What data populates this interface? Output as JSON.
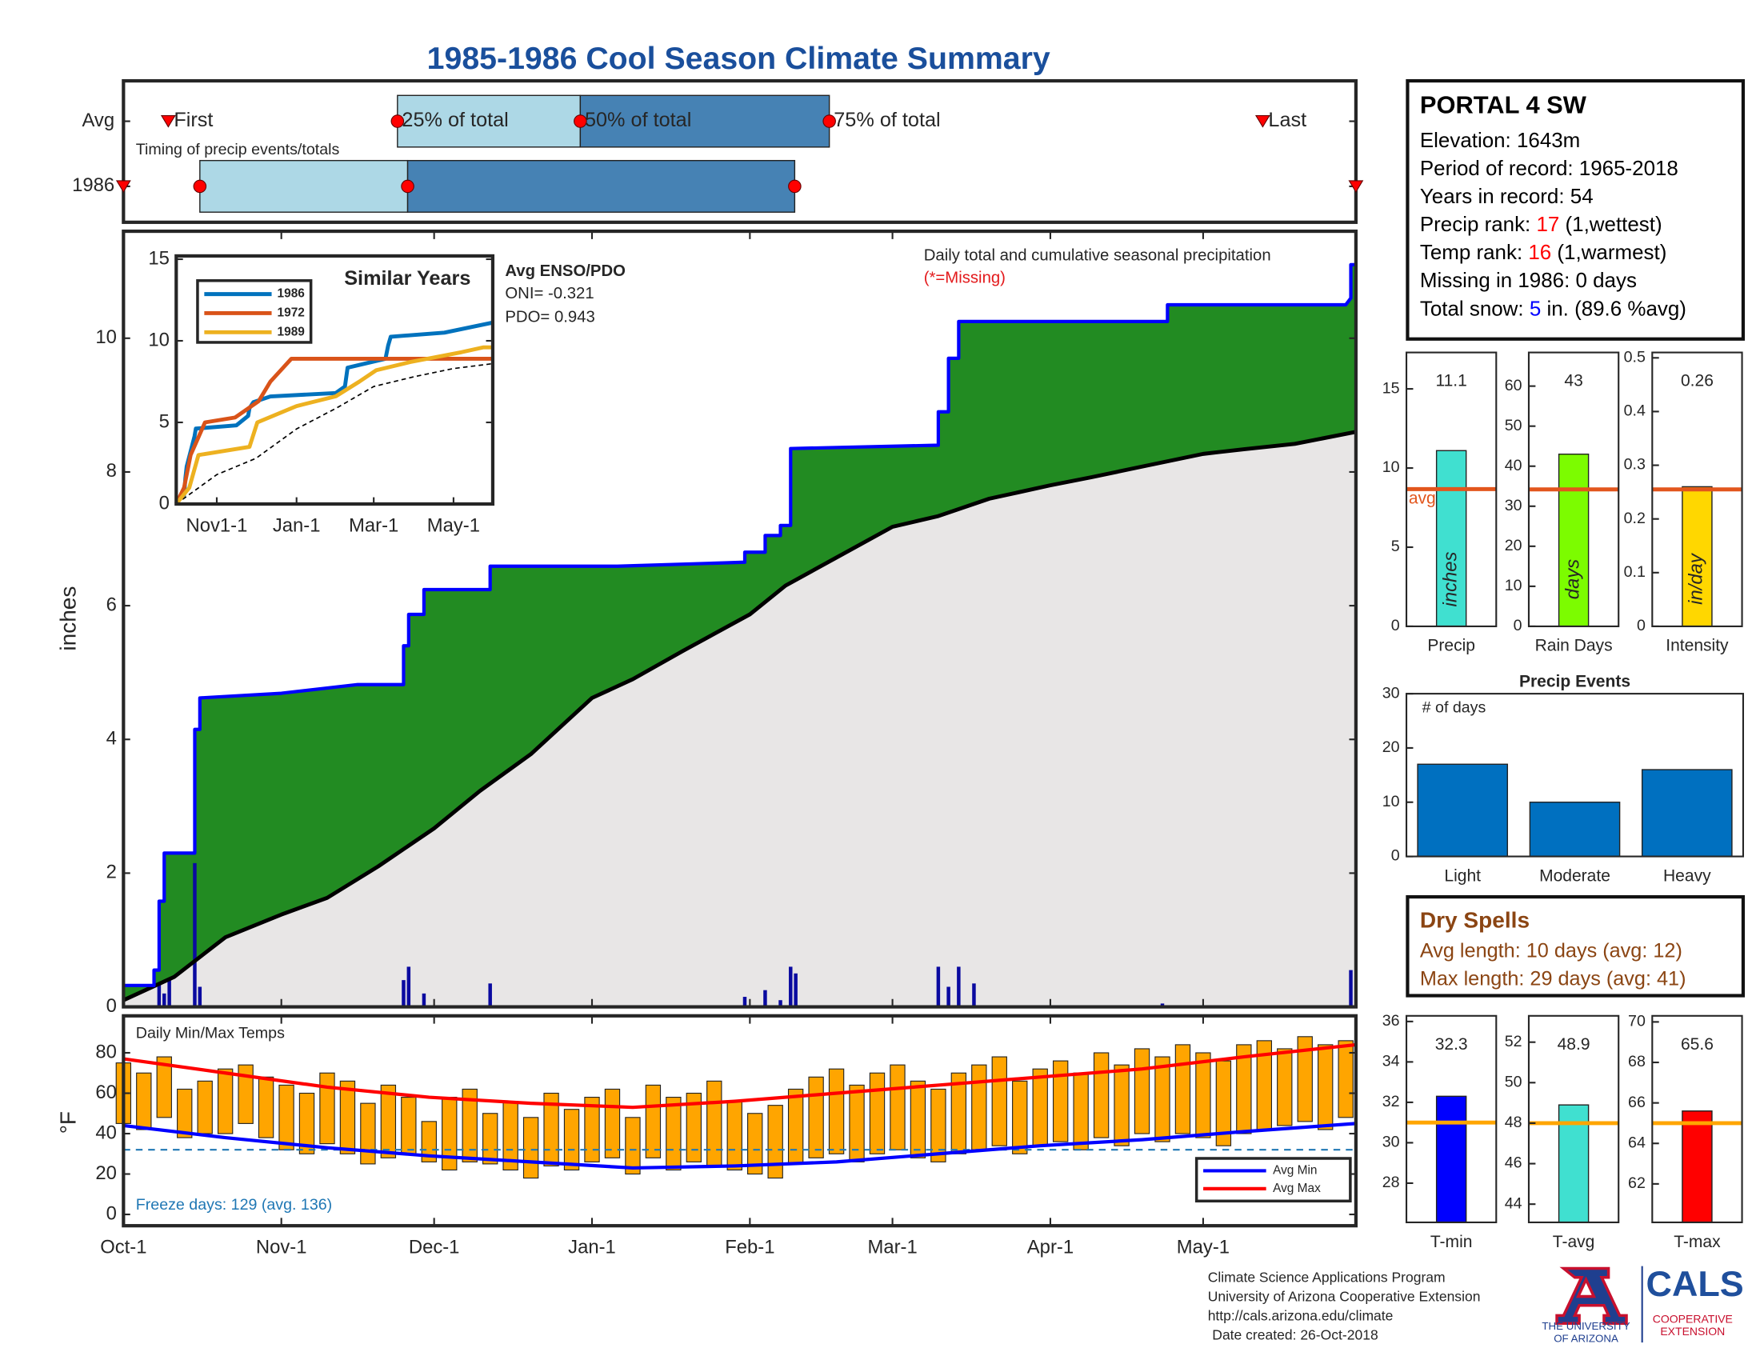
{
  "title": "1985-1986 Cool Season Climate Summary",
  "station": {
    "name": "PORTAL 4 SW",
    "lines": [
      [
        {
          "text": "Elevation: 1643m"
        }
      ],
      [
        {
          "text": "Period of record: 1965-2018"
        }
      ],
      [
        {
          "text": "Years in record: 54"
        }
      ],
      [
        {
          "text": "Precip rank: "
        },
        {
          "text": "17",
          "color": "#ff0000"
        },
        {
          "text": " (1,wettest)"
        }
      ],
      [
        {
          "text": "Temp rank: "
        },
        {
          "text": "16",
          "color": "#ff0000"
        },
        {
          "text": " (1,warmest)"
        }
      ],
      [
        {
          "text": "Missing in 1986: 0 days"
        }
      ],
      [
        {
          "text": "Total snow: "
        },
        {
          "text": "5",
          "color": "#0000ff"
        },
        {
          "text": " in. (89.6 %avg)"
        }
      ]
    ]
  },
  "dry_spells": {
    "title": "Dry Spells",
    "lines": [
      "Avg length: 10 days (avg: 12)",
      "Max length: 29 days (avg: 41)"
    ],
    "color": "#8b4513"
  },
  "footer": {
    "lines": [
      "Climate Science Applications Program",
      "University of Arizona Cooperative Extension",
      "http://cals.arizona.edu/climate",
      "Date created: 26-Oct-2018"
    ]
  },
  "logos": {
    "ua": [
      "THE UNIVERSITY",
      "OF ARIZONA"
    ],
    "cals": "CALS",
    "cals_sub": [
      "COOPERATIVE",
      "EXTENSION"
    ]
  },
  "chart_data": [
    {
      "type": "timeline",
      "title": "Timing of precip events/totals",
      "xlim": [
        0,
        242
      ],
      "labels": {
        "first": "First",
        "q25": "25% of total",
        "q50": "50% of total",
        "q75": "75% of total",
        "last": "Last"
      },
      "rows": [
        {
          "name": "Avg",
          "first": 8.8,
          "q25": 53.8,
          "q50": 89.7,
          "q75": 138.6,
          "last": 223.7
        },
        {
          "name": "1986",
          "first": 0,
          "q25": 15,
          "q50": 55.8,
          "q75": 131.8,
          "last": 242
        }
      ],
      "colors": {
        "light": "#add8e6",
        "dark": "#4682b4",
        "marker": "#ff0000"
      }
    },
    {
      "type": "area",
      "ylabel": "inches",
      "xlim": [
        0,
        242
      ],
      "ylim": [
        0,
        11.6
      ],
      "yticks": [
        0,
        2,
        4,
        6,
        8,
        10
      ],
      "note": "Daily total and cumulative seasonal precipitation",
      "missing_note": "(*=Missing)",
      "enso": {
        "title": "Avg ENSO/PDO",
        "oni": "ONI= -0.321",
        "pdo": "PDO= 0.943"
      },
      "cumulative": {
        "color": "#0000ff",
        "fill": "#228b22",
        "x": [
          0,
          6,
          6,
          7,
          7,
          8,
          8,
          14,
          14,
          15,
          15,
          31,
          46,
          55,
          55,
          56,
          56,
          59,
          59,
          72,
          72,
          97,
          122,
          122,
          126,
          126,
          129,
          129,
          131,
          131,
          160,
          160,
          162,
          162,
          164,
          164,
          203,
          205,
          205,
          240,
          241,
          241,
          242
        ],
        "values": [
          0.32,
          0.32,
          0.55,
          0.55,
          1.58,
          1.58,
          2.3,
          2.3,
          4.15,
          4.15,
          4.62,
          4.69,
          4.82,
          4.82,
          5.4,
          5.4,
          5.87,
          5.87,
          6.24,
          6.24,
          6.59,
          6.59,
          6.65,
          6.8,
          6.8,
          7.05,
          7.05,
          7.2,
          7.2,
          8.35,
          8.4,
          8.9,
          8.9,
          9.7,
          9.7,
          10.25,
          10.25,
          10.25,
          10.5,
          10.5,
          10.6,
          11.1,
          11.1
        ]
      },
      "average": {
        "color": "#000000",
        "fill": "#e8e6e6",
        "x": [
          0,
          10,
          20,
          31,
          40,
          50,
          61,
          70,
          80,
          92,
          100,
          110,
          123,
          130,
          140,
          151,
          160,
          170,
          182,
          190,
          200,
          212,
          220,
          230,
          242
        ],
        "values": [
          0.1,
          0.45,
          1.04,
          1.38,
          1.63,
          2.1,
          2.67,
          3.23,
          3.78,
          4.62,
          4.9,
          5.33,
          5.87,
          6.3,
          6.72,
          7.18,
          7.34,
          7.6,
          7.8,
          7.92,
          8.08,
          8.27,
          8.34,
          8.42,
          8.6
        ]
      },
      "daily": {
        "color": "#0a0aa0",
        "x": [
          7,
          8,
          9,
          14,
          15,
          55,
          56,
          59,
          72,
          122,
          126,
          129,
          131,
          132,
          160,
          162,
          164,
          167,
          204,
          241
        ],
        "values": [
          0.35,
          0.2,
          0.4,
          2.15,
          0.3,
          0.4,
          0.6,
          0.2,
          0.35,
          0.15,
          0.25,
          0.1,
          0.6,
          0.5,
          0.6,
          0.3,
          0.6,
          0.35,
          0.05,
          0.55
        ]
      }
    },
    {
      "type": "line",
      "title": "Similar Years",
      "xlim": [
        0,
        242
      ],
      "ylim": [
        0,
        15.2
      ],
      "yticks": [
        0,
        5,
        10,
        15
      ],
      "xticks": [
        {
          "value": 31,
          "label": "Nov1-1"
        },
        {
          "value": 92,
          "label": "Jan-1"
        },
        {
          "value": 151,
          "label": "Mar-1"
        },
        {
          "value": 212,
          "label": "May-1"
        }
      ],
      "series": [
        {
          "name": "1986",
          "color": "#0072bd",
          "x": [
            0,
            6,
            7,
            8,
            14,
            15,
            46,
            55,
            56,
            59,
            72,
            122,
            129,
            131,
            160,
            162,
            164,
            205,
            241,
            242
          ],
          "values": [
            0.32,
            0.55,
            1.58,
            2.3,
            4.15,
            4.62,
            4.82,
            5.4,
            5.87,
            6.24,
            6.59,
            6.8,
            7.2,
            8.35,
            8.9,
            9.7,
            10.25,
            10.5,
            11.1,
            11.1
          ]
        },
        {
          "name": "1972",
          "color": "#d95319",
          "x": [
            0,
            6,
            11,
            22,
            45,
            63,
            72,
            80,
            88,
            242
          ],
          "values": [
            0,
            1,
            3,
            5,
            5.3,
            6.3,
            7.5,
            8.2,
            8.9,
            8.9
          ]
        },
        {
          "name": "1989",
          "color": "#edb120",
          "x": [
            0,
            10,
            17,
            56,
            62,
            92,
            122,
            140,
            153,
            179,
            218,
            235,
            242
          ],
          "values": [
            0,
            1,
            3,
            3.5,
            5,
            6,
            6.6,
            7.5,
            8.2,
            8.7,
            9.3,
            9.6,
            9.6
          ]
        }
      ],
      "average": {
        "color": "#000000",
        "x": [
          0,
          31,
          61,
          92,
          123,
          151,
          182,
          212,
          242
        ],
        "values": [
          0,
          1.8,
          2.8,
          4.6,
          5.9,
          7.2,
          7.8,
          8.3,
          8.6
        ]
      }
    },
    {
      "type": "range_bar",
      "title": "Daily Min/Max Temps",
      "ylabel": "°F",
      "xlim": [
        0,
        242
      ],
      "ylim": [
        -5.6,
        98.3
      ],
      "yticks": [
        0,
        20,
        40,
        60,
        80
      ],
      "xticks": [
        {
          "value": 0,
          "label": "Oct-1"
        },
        {
          "value": 31,
          "label": "Nov-1"
        },
        {
          "value": 61,
          "label": "Dec-1"
        },
        {
          "value": 92,
          "label": "Jan-1"
        },
        {
          "value": 123,
          "label": "Feb-1"
        },
        {
          "value": 151,
          "label": "Mar-1"
        },
        {
          "value": 182,
          "label": "Apr-1"
        },
        {
          "value": 212,
          "label": "May-1"
        }
      ],
      "bar_color": "#ffa500",
      "freeze_line": 32,
      "freeze_color": "#1f77b4",
      "freeze_note": "Freeze days: 129 (avg. 136)",
      "x": [
        0,
        4,
        8,
        12,
        16,
        20,
        24,
        28,
        32,
        36,
        40,
        44,
        48,
        52,
        56,
        60,
        64,
        68,
        72,
        76,
        80,
        84,
        88,
        92,
        96,
        100,
        104,
        108,
        112,
        116,
        120,
        124,
        128,
        132,
        136,
        140,
        144,
        148,
        152,
        156,
        160,
        164,
        168,
        172,
        176,
        180,
        184,
        188,
        192,
        196,
        200,
        204,
        208,
        212,
        216,
        220,
        224,
        228,
        232,
        236,
        240
      ],
      "max": [
        75,
        70,
        78,
        62,
        66,
        72,
        74,
        68,
        64,
        60,
        70,
        66,
        55,
        64,
        58,
        46,
        58,
        62,
        50,
        56,
        48,
        60,
        52,
        58,
        62,
        48,
        64,
        58,
        60,
        66,
        56,
        50,
        54,
        62,
        68,
        72,
        64,
        70,
        74,
        66,
        62,
        70,
        74,
        78,
        66,
        72,
        76,
        70,
        80,
        74,
        82,
        78,
        84,
        80,
        76,
        84,
        86,
        82,
        88,
        84,
        86
      ],
      "min": [
        45,
        42,
        48,
        38,
        40,
        40,
        45,
        38,
        32,
        30,
        35,
        30,
        25,
        28,
        30,
        26,
        22,
        26,
        25,
        22,
        18,
        24,
        22,
        26,
        28,
        20,
        28,
        22,
        26,
        24,
        22,
        20,
        18,
        25,
        28,
        30,
        26,
        30,
        32,
        28,
        26,
        30,
        32,
        34,
        30,
        34,
        36,
        32,
        38,
        34,
        40,
        36,
        40,
        38,
        34,
        40,
        42,
        44,
        46,
        42,
        48
      ],
      "avg_min": {
        "name": "Avg Min",
        "color": "#0000ff",
        "x": [
          0,
          20,
          40,
          60,
          80,
          100,
          120,
          140,
          160,
          180,
          200,
          220,
          242
        ],
        "values": [
          44,
          38,
          33,
          29,
          26,
          23,
          24,
          26,
          30,
          34,
          37,
          41,
          45
        ]
      },
      "avg_max": {
        "name": "Avg Max",
        "color": "#ff0000",
        "x": [
          0,
          20,
          40,
          60,
          80,
          100,
          120,
          140,
          160,
          180,
          200,
          220,
          242
        ],
        "values": [
          77,
          70,
          63,
          58,
          55,
          53,
          56,
          60,
          64,
          68,
          72,
          78,
          84
        ]
      }
    },
    {
      "type": "bar",
      "categories": [
        "Precip"
      ],
      "values": [
        11.1
      ],
      "show_values": true,
      "unit": "inches",
      "avg": 8.67,
      "avg_label": "avg",
      "color": "#40e0d0",
      "avg_color": "#e2561d",
      "ylim": [
        0,
        17.3
      ],
      "yticks": [
        0,
        5,
        10,
        15
      ]
    },
    {
      "type": "bar",
      "categories": [
        "Rain Days"
      ],
      "values": [
        43
      ],
      "show_values": true,
      "unit": "days",
      "avg": 34.2,
      "color": "#7cfc00",
      "avg_color": "#e2561d",
      "ylim": [
        0,
        68.4
      ],
      "yticks": [
        0,
        10,
        20,
        30,
        40,
        50,
        60
      ]
    },
    {
      "type": "bar",
      "categories": [
        "Intensity"
      ],
      "values": [
        0.26
      ],
      "show_values": true,
      "unit": "in/day",
      "avg": 0.255,
      "color": "#ffd700",
      "avg_color": "#e2561d",
      "ylim": [
        0,
        0.51
      ],
      "yticks": [
        0,
        0.1,
        0.2,
        0.3,
        0.4,
        0.5
      ]
    },
    {
      "type": "bar",
      "title": "Precip Events",
      "ylabel_note": "# of days",
      "categories": [
        "Light",
        "Moderate",
        "Heavy"
      ],
      "values": [
        17,
        10,
        16
      ],
      "color": "#0070c0",
      "ylim": [
        0,
        30
      ],
      "yticks": [
        0,
        10,
        20,
        30
      ]
    },
    {
      "type": "bar",
      "categories": [
        "T-min"
      ],
      "values": [
        32.3
      ],
      "show_values": true,
      "avg": 31,
      "color": "#0000ff",
      "avg_color": "#ffa500",
      "ylim": [
        26.06,
        36.28
      ],
      "yticks": [
        28,
        30,
        32,
        34,
        36
      ]
    },
    {
      "type": "bar",
      "categories": [
        "T-avg"
      ],
      "values": [
        48.9
      ],
      "show_values": true,
      "avg": 48,
      "color": "#40e0d0",
      "avg_color": "#ffa500",
      "ylim": [
        43.1,
        53.3
      ],
      "yticks": [
        44,
        46,
        48,
        50,
        52
      ]
    },
    {
      "type": "bar",
      "categories": [
        "T-max"
      ],
      "values": [
        65.6
      ],
      "show_values": true,
      "avg": 65,
      "color": "#ff0000",
      "avg_color": "#ffa500",
      "ylim": [
        60.1,
        70.3
      ],
      "yticks": [
        62,
        64,
        66,
        68,
        70
      ]
    }
  ]
}
